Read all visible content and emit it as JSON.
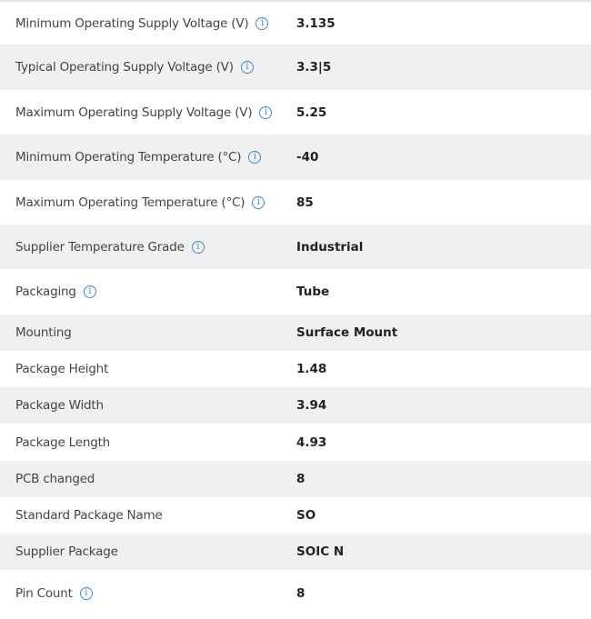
{
  "rows": [
    {
      "label": "Minimum Operating Supply Voltage (V)",
      "value": "3.135",
      "info": true
    },
    {
      "label": "Typical Operating Supply Voltage (V)",
      "value": "3.3|5",
      "info": true
    },
    {
      "label": "Maximum Operating Supply Voltage (V)",
      "value": "5.25",
      "info": true
    },
    {
      "label": "Minimum Operating Temperature (°C)",
      "value": "-40",
      "info": true
    },
    {
      "label": "Maximum Operating Temperature (°C)",
      "value": "85",
      "info": true
    },
    {
      "label": "Supplier Temperature Grade",
      "value": "Industrial",
      "info": true
    },
    {
      "label": "Packaging",
      "value": "Tube",
      "info": true
    },
    {
      "label": "Mounting",
      "value": "Surface Mount",
      "info": false
    },
    {
      "label": "Package Height",
      "value": "1.48",
      "info": false
    },
    {
      "label": "Package Width",
      "value": "3.94",
      "info": false
    },
    {
      "label": "Package Length",
      "value": "4.93",
      "info": false
    },
    {
      "label": "PCB changed",
      "value": "8",
      "info": false
    },
    {
      "label": "Standard Package Name",
      "value": "SO",
      "info": false
    },
    {
      "label": "Supplier Package",
      "value": "SOIC N",
      "info": false
    },
    {
      "label": "Pin Count",
      "value": "8",
      "info": true
    }
  ],
  "info_icon": "info-circle-icon",
  "colors": {
    "row_alt": "#f0f0f0",
    "info_icon": "#3d8bd0"
  }
}
